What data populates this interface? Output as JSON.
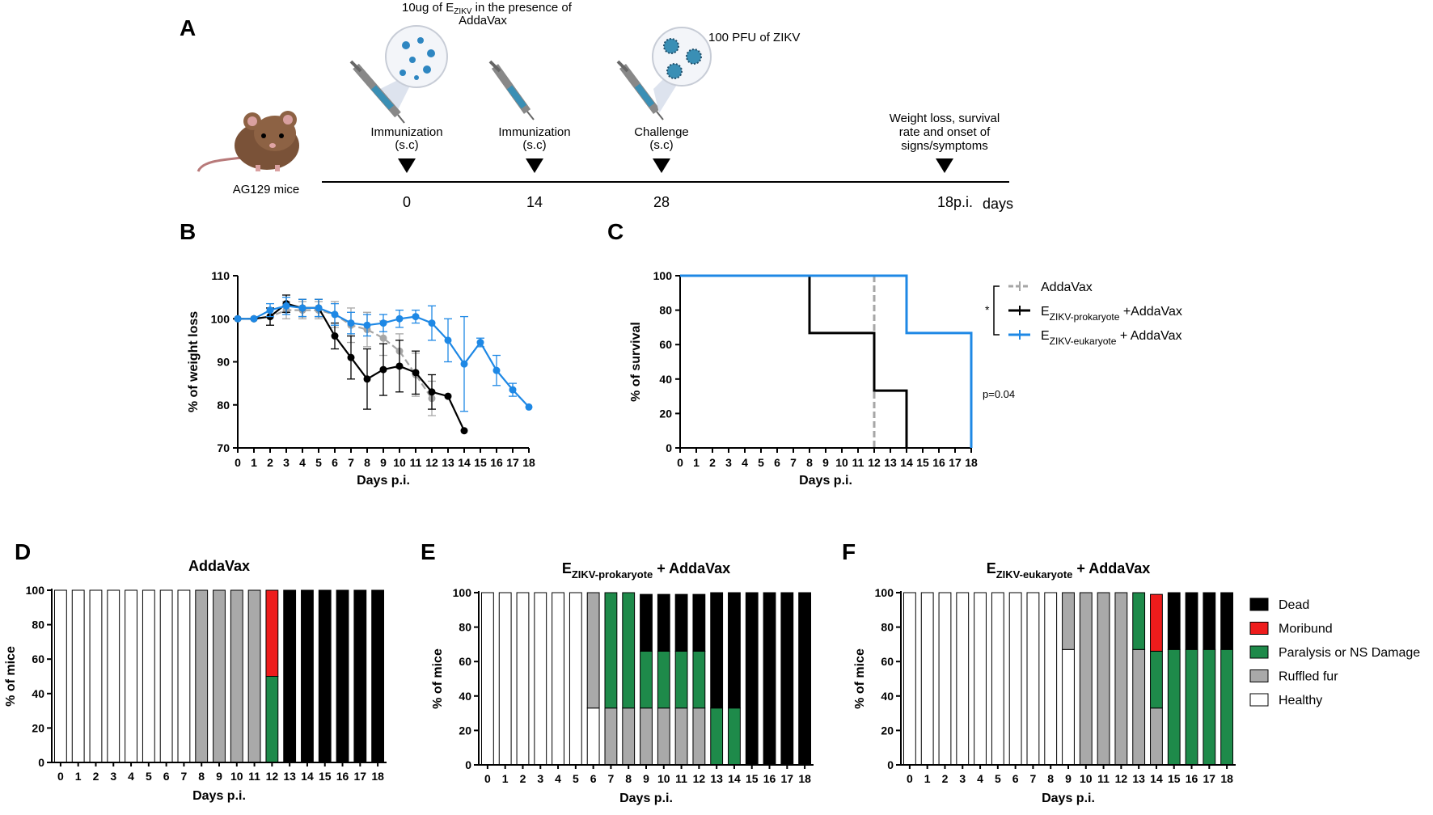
{
  "panel_labels": {
    "A": "A",
    "B": "B",
    "C": "C",
    "D": "D",
    "E": "E",
    "F": "F"
  },
  "timeline": {
    "mouse_label": "AG129 mice",
    "dose_note_1": "10ug of E",
    "dose_note_sub": "ZIKV",
    "dose_note_2": " in the presence of",
    "dose_note_3": "AddaVax",
    "pfu_note": "100 PFU of ZIKV",
    "events": [
      {
        "line1": "Immunization",
        "line2": "(s.c)",
        "day": "0"
      },
      {
        "line1": "Immunization",
        "line2": "(s.c)",
        "day": "14"
      },
      {
        "line1": "Challenge",
        "line2": "(s.c)",
        "day": "28"
      }
    ],
    "final_event": {
      "line1": "Weight loss, survival",
      "line2": "rate and onset of",
      "line3": "signs/symptoms",
      "day": "18p.i."
    },
    "days_label": "days"
  },
  "chart_data": [
    {
      "id": "B",
      "type": "line",
      "xlabel": "Days p.i.",
      "ylabel": "% of weight loss",
      "xlim": [
        0,
        18
      ],
      "ylim": [
        70,
        110
      ],
      "yticks": [
        70,
        80,
        90,
        100,
        110
      ],
      "series": [
        {
          "name": "AddaVax",
          "color": "#a6a6a6",
          "dashed": true,
          "x": [
            0,
            1,
            2,
            3,
            4,
            5,
            6,
            7,
            8,
            9,
            10,
            11,
            12
          ],
          "y": [
            100,
            100,
            100.5,
            102,
            102,
            102,
            101,
            98.5,
            97.5,
            95.5,
            92.5,
            87,
            81.5
          ],
          "err": [
            0,
            0,
            2,
            2,
            2,
            2,
            3,
            4,
            4,
            4,
            4,
            5,
            4
          ]
        },
        {
          "name": "E-prokaryote",
          "color": "#000000",
          "dashed": false,
          "x": [
            0,
            1,
            2,
            3,
            4,
            5,
            6,
            7,
            8,
            9,
            10,
            11,
            12,
            13,
            14
          ],
          "y": [
            100,
            100,
            100.5,
            103.5,
            102.5,
            102.5,
            96,
            91,
            86,
            88.2,
            89,
            87.5,
            83,
            82,
            74
          ],
          "err": [
            0,
            0,
            2,
            2,
            2,
            2,
            3,
            5,
            7,
            6,
            6,
            5,
            4,
            0,
            0
          ]
        },
        {
          "name": "E-eukaryote",
          "color": "#1e88e5",
          "dashed": false,
          "x": [
            0,
            1,
            2,
            3,
            4,
            5,
            6,
            7,
            8,
            9,
            10,
            11,
            12,
            13,
            14,
            15,
            16,
            17,
            18
          ],
          "y": [
            100,
            100,
            102,
            103,
            102.5,
            102.5,
            101,
            99,
            98.5,
            99,
            100,
            100.5,
            99,
            95,
            89.5,
            94.5,
            88,
            83.5,
            79.5
          ],
          "err": [
            0,
            0,
            1.5,
            2,
            2,
            2,
            2.5,
            2.5,
            2.5,
            2,
            2,
            1.5,
            4,
            5,
            11,
            1,
            3.5,
            1.5,
            0
          ]
        }
      ]
    },
    {
      "id": "C",
      "type": "line",
      "subtype": "survival",
      "xlabel": "Days p.i.",
      "ylabel": "% of survival",
      "xlim": [
        0,
        18
      ],
      "ylim": [
        0,
        100
      ],
      "yticks": [
        0,
        20,
        40,
        60,
        80,
        100
      ],
      "series": [
        {
          "name": "AddaVax",
          "color": "#a6a6a6",
          "dashed": true,
          "x": [
            0,
            12,
            12
          ],
          "y": [
            100,
            100,
            0
          ]
        },
        {
          "name": "E-prokaryote",
          "color": "#000000",
          "dashed": false,
          "x": [
            0,
            8,
            8,
            12,
            12,
            14,
            14
          ],
          "y": [
            100,
            100,
            66.7,
            66.7,
            33.3,
            33.3,
            0
          ]
        },
        {
          "name": "E-eukaryote",
          "color": "#1e88e5",
          "dashed": false,
          "x": [
            0,
            14,
            14,
            18,
            18
          ],
          "y": [
            100,
            100,
            66.7,
            66.7,
            0
          ]
        }
      ],
      "legend": [
        {
          "main": "AddaVax",
          "sub": "",
          "tail": ""
        },
        {
          "main": "E",
          "sub": "ZIKV-prokaryote",
          "tail": " +AddaVax"
        },
        {
          "main": "E",
          "sub": "ZIKV-eukaryote",
          "tail": " + AddaVax"
        }
      ],
      "star": "*",
      "pvalue": "p=0.04"
    },
    {
      "id": "D",
      "type": "bar",
      "stacked": true,
      "title": "AddaVax",
      "title_sub": "",
      "title_tail": "",
      "xlabel": "Days p.i.",
      "ylabel": "% of mice",
      "categories": [
        "0",
        "1",
        "2",
        "3",
        "4",
        "5",
        "6",
        "7",
        "8",
        "9",
        "10",
        "11",
        "12",
        "13",
        "14",
        "15",
        "16",
        "17",
        "18"
      ],
      "series": [
        {
          "name": "Healthy",
          "values": [
            100,
            100,
            100,
            100,
            100,
            100,
            100,
            100,
            0,
            0,
            0,
            0,
            0,
            0,
            0,
            0,
            0,
            0,
            0
          ]
        },
        {
          "name": "Ruffled fur",
          "values": [
            0,
            0,
            0,
            0,
            0,
            0,
            0,
            0,
            100,
            100,
            100,
            100,
            0,
            0,
            0,
            0,
            0,
            0,
            0
          ]
        },
        {
          "name": "Paralysis or NS Damage",
          "values": [
            0,
            0,
            0,
            0,
            0,
            0,
            0,
            0,
            0,
            0,
            0,
            0,
            50,
            0,
            0,
            0,
            0,
            0,
            0
          ]
        },
        {
          "name": "Moribund",
          "values": [
            0,
            0,
            0,
            0,
            0,
            0,
            0,
            0,
            0,
            0,
            0,
            0,
            50,
            0,
            0,
            0,
            0,
            0,
            0
          ]
        },
        {
          "name": "Dead",
          "values": [
            0,
            0,
            0,
            0,
            0,
            0,
            0,
            0,
            0,
            0,
            0,
            0,
            0,
            100,
            100,
            100,
            100,
            100,
            100
          ]
        }
      ]
    },
    {
      "id": "E",
      "type": "bar",
      "stacked": true,
      "title": "E",
      "title_sub": "ZIKV-prokaryote",
      "title_tail": " + AddaVax",
      "xlabel": "Days p.i.",
      "ylabel": "% of mice",
      "categories": [
        "0",
        "1",
        "2",
        "3",
        "4",
        "5",
        "6",
        "7",
        "8",
        "9",
        "10",
        "11",
        "12",
        "13",
        "14",
        "15",
        "16",
        "17",
        "18"
      ],
      "series": [
        {
          "name": "Healthy",
          "values": [
            100,
            100,
            100,
            100,
            100,
            100,
            33,
            0,
            0,
            0,
            0,
            0,
            0,
            0,
            0,
            0,
            0,
            0,
            0
          ]
        },
        {
          "name": "Ruffled fur",
          "values": [
            0,
            0,
            0,
            0,
            0,
            0,
            67,
            33,
            33,
            33,
            33,
            33,
            33,
            0,
            0,
            0,
            0,
            0,
            0
          ]
        },
        {
          "name": "Paralysis or NS Damage",
          "values": [
            0,
            0,
            0,
            0,
            0,
            0,
            0,
            67,
            67,
            33,
            33,
            33,
            33,
            33,
            33,
            0,
            0,
            0,
            0
          ]
        },
        {
          "name": "Moribund",
          "values": [
            0,
            0,
            0,
            0,
            0,
            0,
            0,
            0,
            0,
            0,
            0,
            0,
            0,
            0,
            0,
            0,
            0,
            0,
            0
          ]
        },
        {
          "name": "Dead",
          "values": [
            0,
            0,
            0,
            0,
            0,
            0,
            0,
            0,
            0,
            33,
            33,
            33,
            33,
            67,
            67,
            100,
            100,
            100,
            100
          ]
        }
      ]
    },
    {
      "id": "F",
      "type": "bar",
      "stacked": true,
      "title": "E",
      "title_sub": "ZIKV-eukaryote",
      "title_tail": " + AddaVax",
      "xlabel": "Days p.i.",
      "ylabel": "% of mice",
      "categories": [
        "0",
        "1",
        "2",
        "3",
        "4",
        "5",
        "6",
        "7",
        "8",
        "9",
        "10",
        "11",
        "12",
        "13",
        "14",
        "15",
        "16",
        "17",
        "18"
      ],
      "series": [
        {
          "name": "Healthy",
          "values": [
            100,
            100,
            100,
            100,
            100,
            100,
            100,
            100,
            100,
            67,
            0,
            0,
            0,
            0,
            0,
            0,
            0,
            0,
            0
          ]
        },
        {
          "name": "Ruffled fur",
          "values": [
            0,
            0,
            0,
            0,
            0,
            0,
            0,
            0,
            0,
            33,
            100,
            100,
            100,
            67,
            33,
            0,
            0,
            0,
            0
          ]
        },
        {
          "name": "Paralysis or NS Damage",
          "values": [
            0,
            0,
            0,
            0,
            0,
            0,
            0,
            0,
            0,
            0,
            0,
            0,
            0,
            33,
            33,
            67,
            67,
            67,
            67
          ]
        },
        {
          "name": "Moribund",
          "values": [
            0,
            0,
            0,
            0,
            0,
            0,
            0,
            0,
            0,
            0,
            0,
            0,
            0,
            0,
            33,
            0,
            0,
            0,
            0
          ]
        },
        {
          "name": "Dead",
          "values": [
            0,
            0,
            0,
            0,
            0,
            0,
            0,
            0,
            0,
            0,
            0,
            0,
            0,
            0,
            0,
            33,
            33,
            33,
            33
          ]
        }
      ]
    }
  ],
  "bar_legend": [
    {
      "name": "Dead",
      "color": "#000000"
    },
    {
      "name": "Moribund",
      "color": "#ee1c1c"
    },
    {
      "name": "Paralysis or NS Damage",
      "color": "#1e8a4a"
    },
    {
      "name": "Ruffled fur",
      "color": "#a9a9a9"
    },
    {
      "name": "Healthy",
      "color": "#ffffff"
    }
  ],
  "colors": {
    "gray": "#a6a6a6",
    "black": "#000000",
    "blue": "#1e88e5",
    "syringe_blue": "#3a8fb5",
    "mouse": "#7a5238"
  }
}
